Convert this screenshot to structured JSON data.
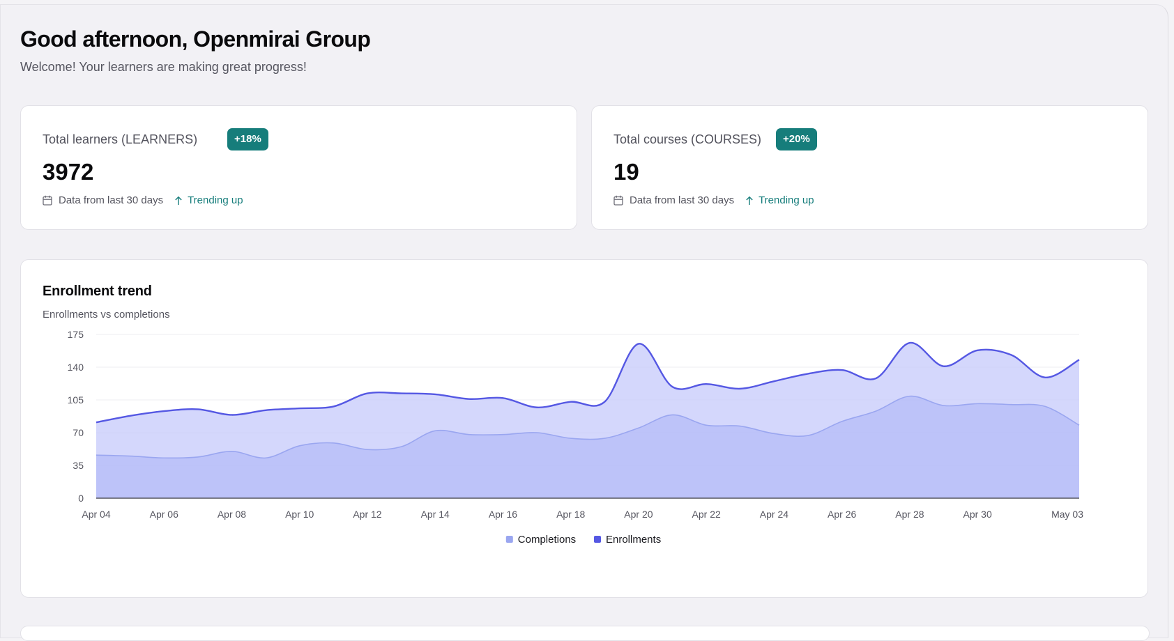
{
  "header": {
    "greeting": "Good afternoon, Openmirai Group",
    "welcome": "Welcome! Your learners are making great progress!"
  },
  "stats": [
    {
      "label": "Total learners (LEARNERS)",
      "badge": "+18%",
      "value": "3972",
      "meta": "Data from last 30 days",
      "trend": "Trending up"
    },
    {
      "label": "Total courses (COURSES)",
      "badge": "+20%",
      "value": "19",
      "meta": "Data from last 30 days",
      "trend": "Trending up"
    }
  ],
  "colors": {
    "accent_teal": "#167d7b",
    "enrollments": "#5558e3",
    "completions": "#9aa6f0"
  },
  "chart": {
    "title": "Enrollment trend",
    "subtitle": "Enrollments vs completions"
  },
  "chart_data": {
    "type": "area",
    "title": "Enrollment trend",
    "subtitle": "Enrollments vs completions",
    "x_tick_labels": [
      "Apr 04",
      "Apr 06",
      "Apr 08",
      "Apr 10",
      "Apr 12",
      "Apr 14",
      "Apr 16",
      "Apr 18",
      "Apr 20",
      "Apr 22",
      "Apr 24",
      "Apr 26",
      "Apr 28",
      "Apr 30",
      "May 03"
    ],
    "y_ticks": [
      0,
      35,
      70,
      105,
      140,
      175
    ],
    "ylim": [
      0,
      175
    ],
    "grid": true,
    "legend_position": "bottom",
    "x": [
      "Apr 04",
      "Apr 05",
      "Apr 06",
      "Apr 07",
      "Apr 08",
      "Apr 09",
      "Apr 10",
      "Apr 11",
      "Apr 12",
      "Apr 13",
      "Apr 14",
      "Apr 15",
      "Apr 16",
      "Apr 17",
      "Apr 18",
      "Apr 19",
      "Apr 20",
      "Apr 21",
      "Apr 22",
      "Apr 23",
      "Apr 24",
      "Apr 25",
      "Apr 26",
      "Apr 27",
      "Apr 28",
      "Apr 29",
      "Apr 30",
      "May 01",
      "May 02",
      "May 03"
    ],
    "series": [
      {
        "name": "Completions",
        "values": [
          46,
          45,
          43,
          44,
          50,
          43,
          56,
          59,
          52,
          55,
          72,
          68,
          68,
          70,
          64,
          64,
          75,
          89,
          78,
          77,
          69,
          67,
          82,
          93,
          109,
          99,
          101,
          100,
          98,
          78
        ]
      },
      {
        "name": "Enrollments",
        "values": [
          81,
          88,
          93,
          95,
          89,
          94,
          96,
          98,
          112,
          112,
          111,
          106,
          107,
          97,
          103,
          103,
          165,
          119,
          122,
          117,
          125,
          133,
          137,
          128,
          166,
          141,
          158,
          153,
          129,
          148
        ]
      }
    ]
  }
}
